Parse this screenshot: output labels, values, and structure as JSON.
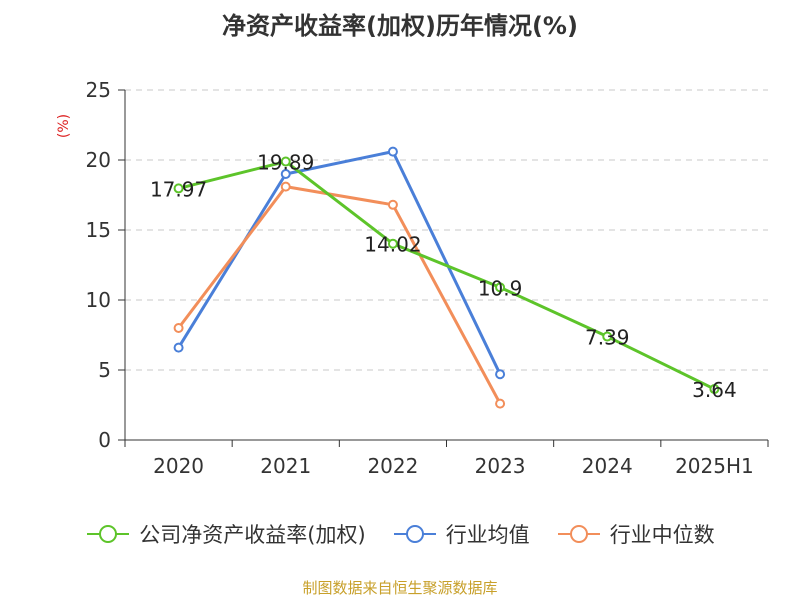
{
  "chart_data": {
    "type": "line",
    "title": "净资产收益率(加权)历年情况(%)",
    "ylabel": "(%)",
    "categories": [
      "2020",
      "2021",
      "2022",
      "2023",
      "2024",
      "2025H1"
    ],
    "ylim": [
      0,
      25
    ],
    "yticks": [
      0,
      5,
      10,
      15,
      20,
      25
    ],
    "grid": true,
    "legend_position": "bottom",
    "series": [
      {
        "name": "公司净资产收益率(加权)",
        "color": "#5dc42a",
        "values": [
          17.97,
          19.89,
          14.02,
          10.9,
          7.39,
          3.64
        ],
        "show_labels": true
      },
      {
        "name": "行业均值",
        "color": "#4a7fd8",
        "values": [
          6.6,
          19.0,
          20.6,
          4.7,
          null,
          null
        ],
        "show_labels": false
      },
      {
        "name": "行业中位数",
        "color": "#f28e5a",
        "values": [
          8.0,
          18.1,
          16.8,
          2.6,
          null,
          null
        ],
        "show_labels": false
      }
    ],
    "data_labels": [
      "17.97",
      "19.89",
      "14.02",
      "10.9",
      "7.39",
      "3.64"
    ]
  },
  "source": "制图数据来自恒生聚源数据库"
}
